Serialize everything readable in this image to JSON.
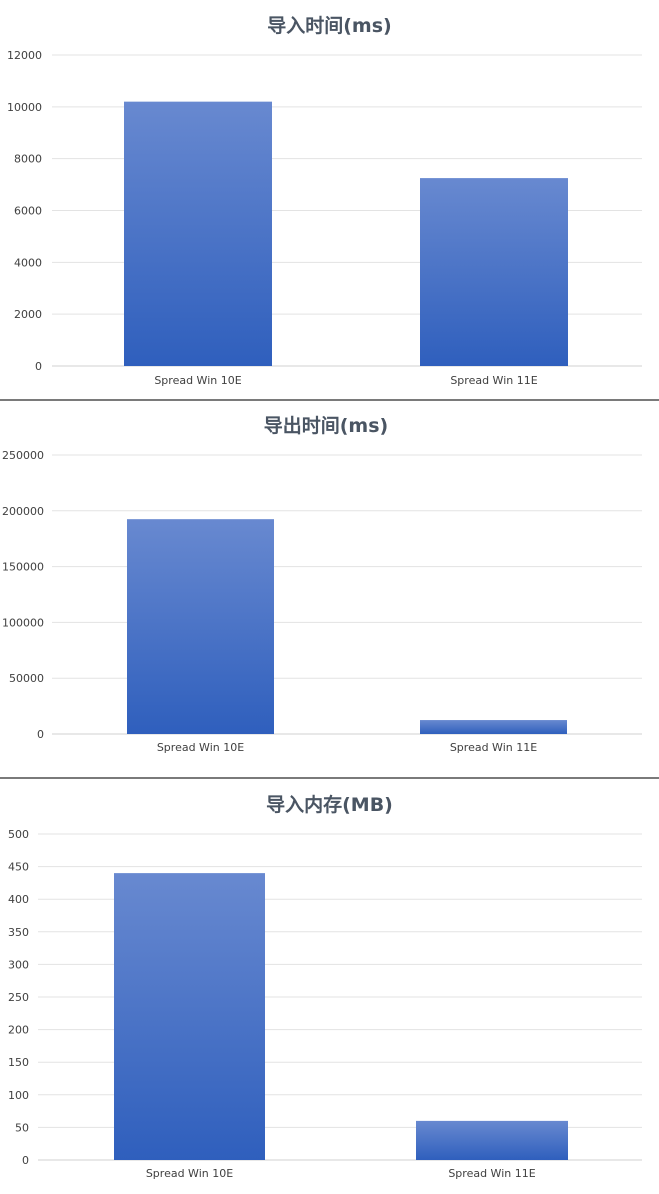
{
  "colors": {
    "bar_top": "#6889d0",
    "bar_bottom": "#2f5fbd",
    "grid": "#e3e3e3",
    "title": "#4a5563"
  },
  "chart_data": [
    {
      "type": "bar",
      "title": "导入时间(ms)",
      "categories": [
        "Spread Win 10E",
        "Spread Win 11E"
      ],
      "values": [
        10200,
        7250
      ],
      "ylim": [
        0,
        12000
      ],
      "yticks": [
        0,
        2000,
        4000,
        6000,
        8000,
        10000,
        12000
      ],
      "grid": true,
      "legend": "none"
    },
    {
      "type": "bar",
      "title": "导出时间(ms)",
      "categories": [
        "Spread Win 10E",
        "Spread Win 11E"
      ],
      "values": [
        192500,
        12500
      ],
      "ylim": [
        0,
        250000
      ],
      "yticks": [
        0,
        50000,
        100000,
        150000,
        200000,
        250000
      ],
      "grid": true,
      "legend": "none"
    },
    {
      "type": "bar",
      "title": "导入内存(MB)",
      "categories": [
        "Spread Win 10E",
        "Spread Win 11E"
      ],
      "values": [
        440,
        60
      ],
      "ylim": [
        0,
        500
      ],
      "yticks": [
        0,
        50,
        100,
        150,
        200,
        250,
        300,
        350,
        400,
        450,
        500
      ],
      "grid": true,
      "legend": "none"
    }
  ]
}
